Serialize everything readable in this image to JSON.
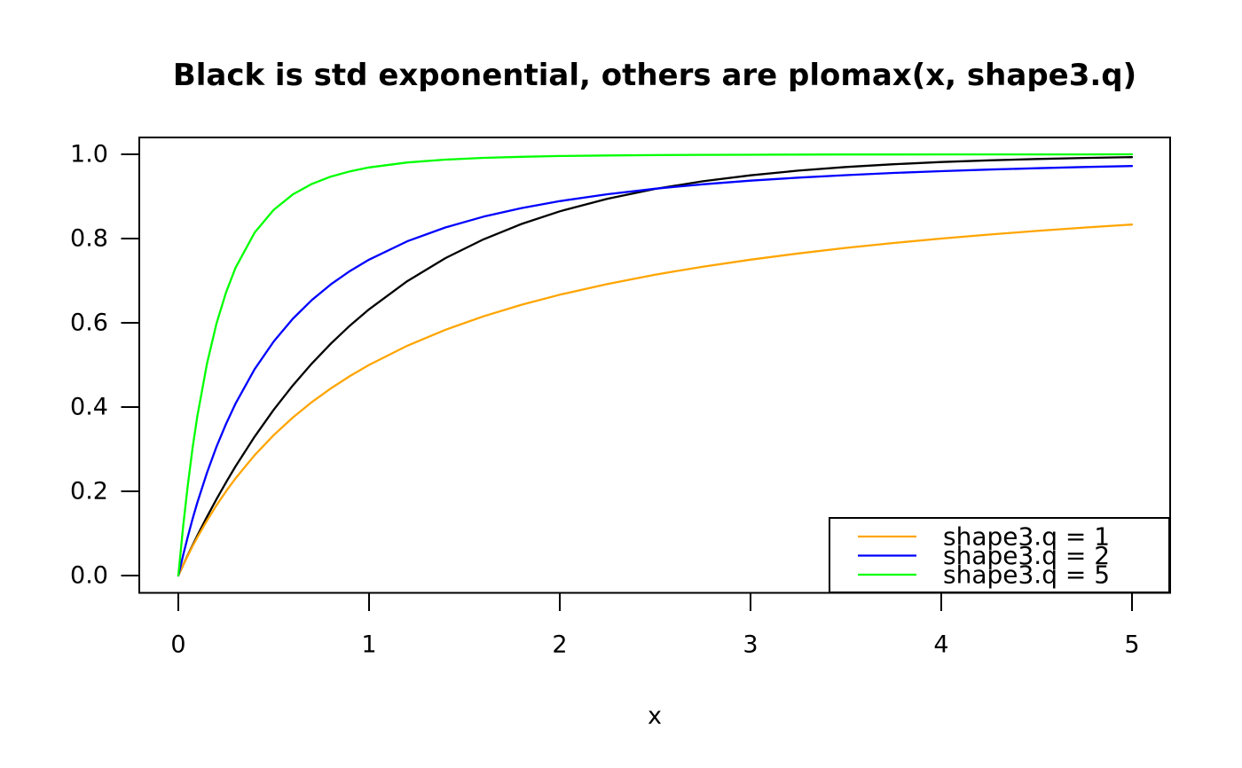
{
  "chart_data": {
    "type": "line",
    "title": "Black is std exponential, others are plomax(x, shape3.q)",
    "xlabel": "x",
    "ylabel": "",
    "xlim": [
      -0.2,
      5.2
    ],
    "ylim": [
      -0.04,
      1.04
    ],
    "x_ticks": [
      0,
      1,
      2,
      3,
      4,
      5
    ],
    "y_ticks": [
      0.0,
      0.2,
      0.4,
      0.6,
      0.8,
      1.0
    ],
    "grid": false,
    "background_color": "#ffffff",
    "axis_color": "#000000",
    "x": [
      0,
      0.025,
      0.05,
      0.075,
      0.1,
      0.15,
      0.2,
      0.25,
      0.3,
      0.4,
      0.5,
      0.6,
      0.7,
      0.8,
      0.9,
      1,
      1.2,
      1.4,
      1.6,
      1.8,
      2,
      2.25,
      2.5,
      2.75,
      3,
      3.25,
      3.5,
      3.75,
      4,
      4.25,
      4.5,
      4.75,
      5
    ],
    "series": [
      {
        "name": "std exponential",
        "color": "#000000",
        "in_legend": false,
        "y": [
          0,
          0.0247,
          0.0488,
          0.0723,
          0.0952,
          0.1393,
          0.1813,
          0.2212,
          0.2592,
          0.3297,
          0.3935,
          0.4512,
          0.5034,
          0.5507,
          0.5934,
          0.6321,
          0.6988,
          0.7534,
          0.7981,
          0.8347,
          0.8647,
          0.8946,
          0.9179,
          0.9361,
          0.9502,
          0.9612,
          0.9698,
          0.9765,
          0.9817,
          0.9857,
          0.9889,
          0.9914,
          0.9933
        ]
      },
      {
        "name": "shape3.q = 1",
        "color": "#FFA500",
        "in_legend": true,
        "y": [
          0,
          0.0244,
          0.0476,
          0.0698,
          0.0909,
          0.1304,
          0.1667,
          0.2,
          0.2308,
          0.2857,
          0.3333,
          0.375,
          0.4118,
          0.4444,
          0.4737,
          0.5,
          0.5455,
          0.5833,
          0.6154,
          0.6429,
          0.6667,
          0.6923,
          0.7143,
          0.7333,
          0.75,
          0.7647,
          0.7778,
          0.7895,
          0.8,
          0.8095,
          0.8182,
          0.8261,
          0.8333
        ]
      },
      {
        "name": "shape3.q = 2",
        "color": "#0000FF",
        "in_legend": true,
        "y": [
          0,
          0.0482,
          0.093,
          0.1347,
          0.1736,
          0.2439,
          0.3056,
          0.36,
          0.4083,
          0.4898,
          0.5556,
          0.6094,
          0.654,
          0.6914,
          0.723,
          0.75,
          0.7934,
          0.8264,
          0.8521,
          0.8724,
          0.8889,
          0.9053,
          0.9184,
          0.9289,
          0.9375,
          0.9446,
          0.9506,
          0.9557,
          0.96,
          0.9637,
          0.9669,
          0.9698,
          0.9722
        ]
      },
      {
        "name": "shape3.q = 5",
        "color": "#00FF00",
        "in_legend": true,
        "y": [
          0,
          0.1161,
          0.2165,
          0.3034,
          0.3791,
          0.5028,
          0.5981,
          0.6723,
          0.7307,
          0.8141,
          0.8683,
          0.9046,
          0.9296,
          0.9471,
          0.9596,
          0.9688,
          0.9806,
          0.9874,
          0.9916,
          0.9942,
          0.9959,
          0.9972,
          0.9981,
          0.9987,
          0.999,
          0.9993,
          0.9995,
          0.9996,
          0.9997,
          0.9997,
          0.9998,
          0.9998,
          0.9999
        ]
      }
    ],
    "legend": {
      "position": "bottomright",
      "entries": [
        {
          "label": "shape3.q = 1",
          "color": "#FFA500"
        },
        {
          "label": "shape3.q = 2",
          "color": "#0000FF"
        },
        {
          "label": "shape3.q = 5",
          "color": "#00FF00"
        }
      ]
    }
  }
}
